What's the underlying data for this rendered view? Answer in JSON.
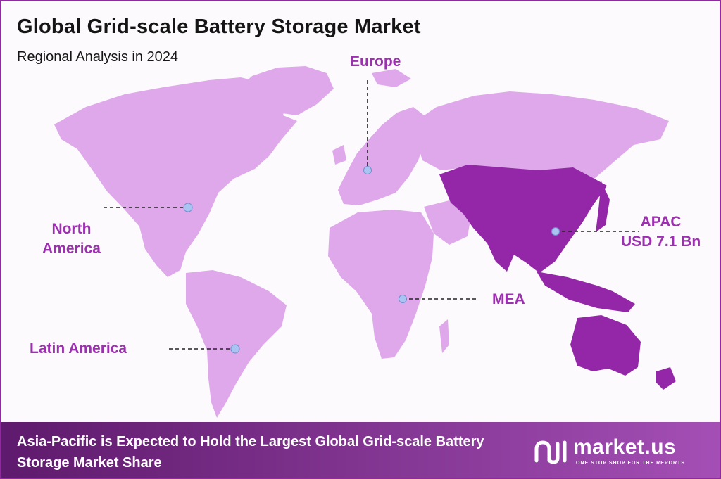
{
  "header": {
    "title": "Global Grid-scale Battery Storage Market",
    "subtitle": "Regional Analysis in 2024"
  },
  "regions": [
    {
      "id": "europe",
      "label_lines": [
        "Europe"
      ],
      "highlight": false
    },
    {
      "id": "north-america",
      "label_lines": [
        "North",
        "America"
      ],
      "highlight": false
    },
    {
      "id": "apac",
      "label_lines": [
        "APAC",
        "USD 7.1 Bn"
      ],
      "highlight": true
    },
    {
      "id": "mea",
      "label_lines": [
        "MEA"
      ],
      "highlight": false
    },
    {
      "id": "latin-america",
      "label_lines": [
        "Latin America"
      ],
      "highlight": false
    }
  ],
  "footer": {
    "statement": "Asia-Pacific is Expected to Hold the Largest Global Grid-scale Battery Storage Market Share"
  },
  "brand": {
    "name": "market.us",
    "tagline": "ONE STOP SHOP FOR THE REPORTS"
  },
  "colors": {
    "land": "#dea8ea",
    "land_highlight": "#9327a8",
    "label": "#9c30b0",
    "marker": "#a9c4f0",
    "footer_from": "#5e1a6c",
    "footer_to": "#a44fb5"
  }
}
